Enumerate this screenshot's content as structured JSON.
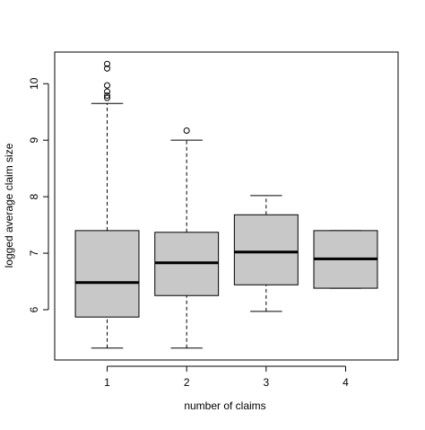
{
  "chart_data": {
    "type": "boxplot",
    "x_label": "number of claims",
    "y_label": "logged average claim size",
    "categories": [
      "1",
      "2",
      "3",
      "4"
    ],
    "boxes": [
      {
        "min": 5.32,
        "q1": 5.87,
        "median": 6.48,
        "q3": 7.4,
        "max": 9.65,
        "outliers": [
          10.35,
          10.27,
          9.97,
          9.86,
          9.79,
          9.75
        ]
      },
      {
        "min": 5.32,
        "q1": 6.25,
        "median": 6.83,
        "q3": 7.37,
        "max": 9.0,
        "outliers": [
          9.17
        ]
      },
      {
        "min": 5.97,
        "q1": 6.44,
        "median": 7.02,
        "q3": 7.68,
        "max": 8.02,
        "outliers": []
      },
      {
        "min": 6.38,
        "q1": 6.38,
        "median": 6.9,
        "q3": 7.4,
        "max": 7.4,
        "outliers": []
      }
    ],
    "color": "#c8c8c8",
    "ylim": [
      5.11,
      10.56
    ],
    "yticks": [
      6,
      7,
      8,
      9,
      10
    ]
  }
}
